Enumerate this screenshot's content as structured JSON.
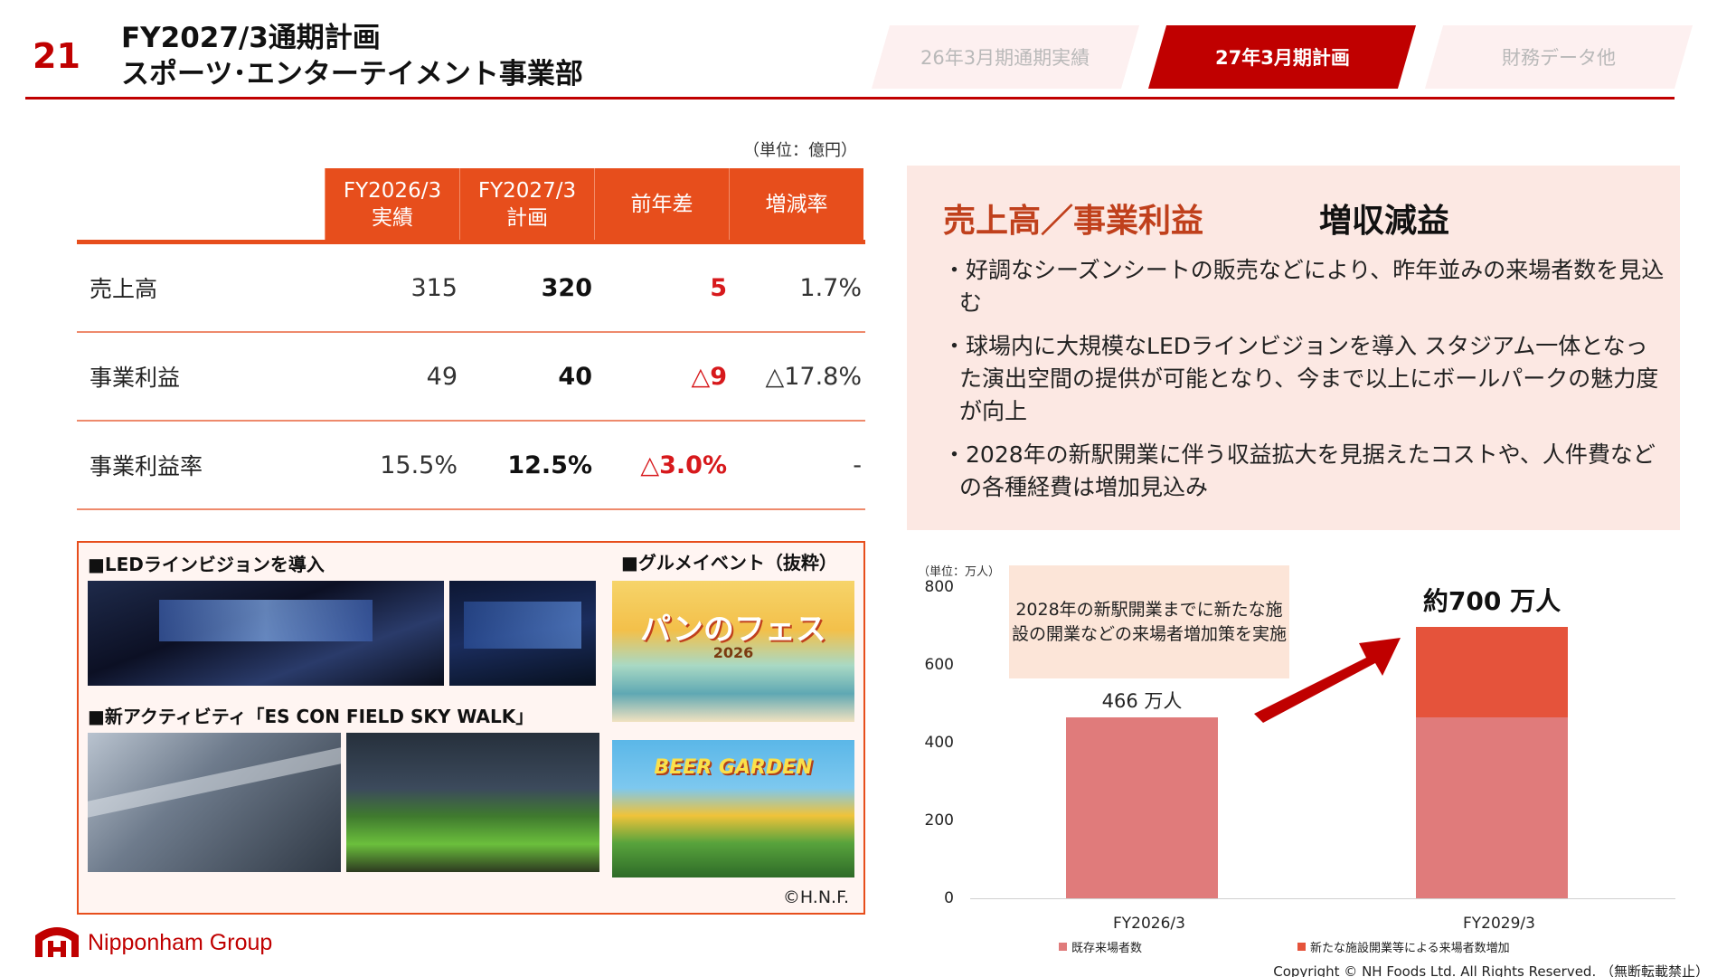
{
  "header": {
    "page_number": "21",
    "title_line1": "FY2027/3通期計画",
    "title_line2": "スポーツ･エンターテイメント事業部",
    "tabs": [
      {
        "label": "26年3月期通期実績",
        "active": false
      },
      {
        "label": "27年3月期計画",
        "active": true
      },
      {
        "label": "財務データ他",
        "active": false
      }
    ]
  },
  "table": {
    "unit": "（単位：億円）",
    "headers": [
      {
        "line1": "FY2026/3",
        "line2": "実績"
      },
      {
        "line1": "FY2027/3",
        "line2": "計画"
      },
      {
        "line1": "前年差",
        "line2": ""
      },
      {
        "line1": "増減率",
        "line2": ""
      }
    ],
    "rows": [
      {
        "label": "売上高",
        "actual": "315",
        "plan": "320",
        "diff": "5",
        "rate": "1.7%"
      },
      {
        "label": "事業利益",
        "actual": "49",
        "plan": "40",
        "diff": "△9",
        "rate": "△17.8%"
      },
      {
        "label": "事業利益率",
        "actual": "15.5%",
        "plan": "12.5%",
        "diff": "△3.0%",
        "rate": "-"
      }
    ]
  },
  "photos": {
    "caption_led": "■LEDラインビジョンを導入",
    "caption_gourmet": "■グルメイベント（抜粋）",
    "caption_activity": "■新アクティビティ「ES CON FIELD SKY WALK」",
    "pan_fes_title": "パンのフェス",
    "pan_fes_year": "2026",
    "beer_garden": "BEER GARDEN",
    "credit": "©H.N.F."
  },
  "summary": {
    "heading": "売上高／事業利益",
    "tag": "増収減益",
    "bullets": [
      "好調なシーズンシートの販売などにより、昨年並みの来場者数を見込む",
      "球場内に大規模なLEDラインビジョンを導入 スタジアム一体となった演出空間の提供が可能となり、今まで以上にボールパークの魅力度が向上",
      "2028年の新駅開業に伴う収益拡大を見据えたコストや、人件費などの各種経費は増加見込み"
    ]
  },
  "chart_data": {
    "type": "bar",
    "stacked": true,
    "unit_label": "（単位：万人）",
    "categories": [
      "FY2026/3",
      "FY2029/3"
    ],
    "series": [
      {
        "name": "既存来場者数",
        "values": [
          466,
          466
        ],
        "color": "#e07b7b"
      },
      {
        "name": "新たな施設開業等による来場者数増加",
        "values": [
          0,
          234
        ],
        "color": "#e5533b"
      }
    ],
    "ylim": [
      0,
      800
    ],
    "yticks": [
      "800",
      "600",
      "400",
      "200",
      "0"
    ],
    "data_labels": [
      "466 万人",
      "約700 万人"
    ],
    "callout": "2028年の新駅開業までに新たな施設の開業などの来場者増加策を実施",
    "legend_position": "bottom"
  },
  "footer": {
    "logo_text": "Nipponham Group",
    "copyright": "Copyright © NH Foods Ltd. All Rights Reserved. （無断転載禁止）"
  }
}
